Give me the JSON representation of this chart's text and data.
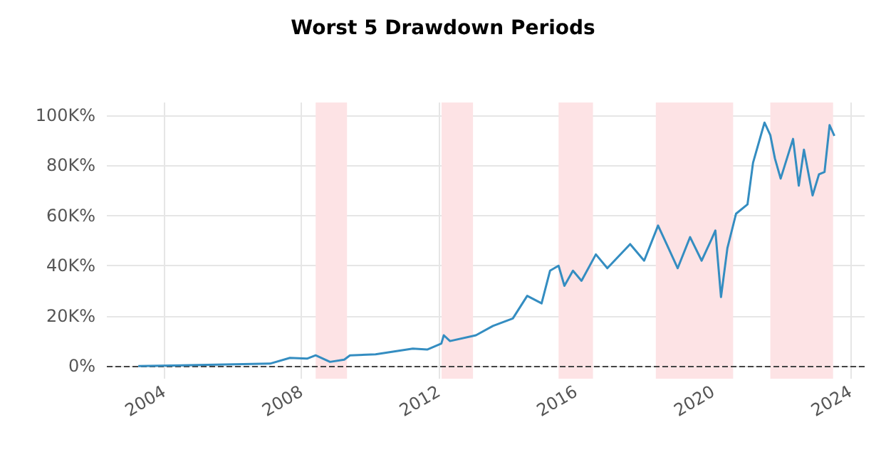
{
  "chart_data": {
    "type": "line",
    "title": "Worst 5 Drawdown Periods",
    "x": [
      "2003-04",
      "2007-02",
      "2007-09",
      "2008-03",
      "2008-06",
      "2008-11",
      "2009-04",
      "2009-06",
      "2010-03",
      "2011-04",
      "2011-09",
      "2012-01-30",
      "2012-02-25",
      "2012-05",
      "2013-02",
      "2013-08",
      "2014-03",
      "2014-08",
      "2015-01",
      "2015-04",
      "2015-07",
      "2015-09",
      "2015-12",
      "2016-03",
      "2016-08",
      "2016-12",
      "2017-08",
      "2017-12-28",
      "2018-05-25",
      "2018-09",
      "2018-12-20",
      "2019-05",
      "2019-09",
      "2019-12-15",
      "2020-01-25",
      "2020-03-25",
      "2020-06",
      "2020-09",
      "2021-01",
      "2021-03",
      "2021-07",
      "2021-09",
      "2021-10-20",
      "2021-12-20",
      "2022-05",
      "2022-07",
      "2022-08-25",
      "2022-11-25",
      "2023-02",
      "2023-04",
      "2023-05-25",
      "2023-07-15"
    ],
    "series": [
      {
        "color": "#348dc1",
        "values": [
          0,
          1000,
          3300,
          3000,
          4300,
          1700,
          2600,
          4300,
          4700,
          7000,
          6600,
          9000,
          12300,
          10000,
          12300,
          16000,
          19000,
          28000,
          25000,
          38000,
          40000,
          32000,
          38000,
          34000,
          44500,
          39000,
          48600,
          42000,
          56000,
          48000,
          39000,
          51400,
          42000,
          50500,
          54000,
          27500,
          47000,
          60700,
          64400,
          81000,
          97000,
          92000,
          82700,
          74700,
          90500,
          71900,
          86200,
          68000,
          76400,
          77300,
          96000,
          91700
        ]
      }
    ],
    "xlim": [
      "2002-05",
      "2024-06"
    ],
    "xticks": [
      "2004",
      "2008",
      "2012",
      "2016",
      "2020",
      "2024"
    ],
    "ylim": [
      -5000,
      105000
    ],
    "yticks": [
      {
        "value": 0,
        "label": "0%"
      },
      {
        "value": 20000,
        "label": "20K%"
      },
      {
        "value": 40000,
        "label": "40K%"
      },
      {
        "value": 60000,
        "label": "60K%"
      },
      {
        "value": 80000,
        "label": "80K%"
      },
      {
        "value": 100000,
        "label": "100K%"
      }
    ],
    "bands": [
      {
        "axis": "x",
        "from": "2008-06",
        "to": "2009-05",
        "color": "#fde3e5"
      },
      {
        "axis": "x",
        "from": "2012-02",
        "to": "2013-01",
        "color": "#fde3e5"
      },
      {
        "axis": "x",
        "from": "2015-07",
        "to": "2016-07",
        "color": "#fde3e5"
      },
      {
        "axis": "x",
        "from": "2018-05",
        "to": "2020-08",
        "color": "#fde3e5"
      },
      {
        "axis": "x",
        "from": "2021-09",
        "to": "2023-07",
        "color": "#fde3e5"
      }
    ],
    "ref_lines": [
      {
        "axis": "y",
        "value": 0,
        "color": "#444444",
        "line_style": "dashed"
      }
    ],
    "grid": true,
    "marker": "none",
    "line_style": "solid"
  }
}
